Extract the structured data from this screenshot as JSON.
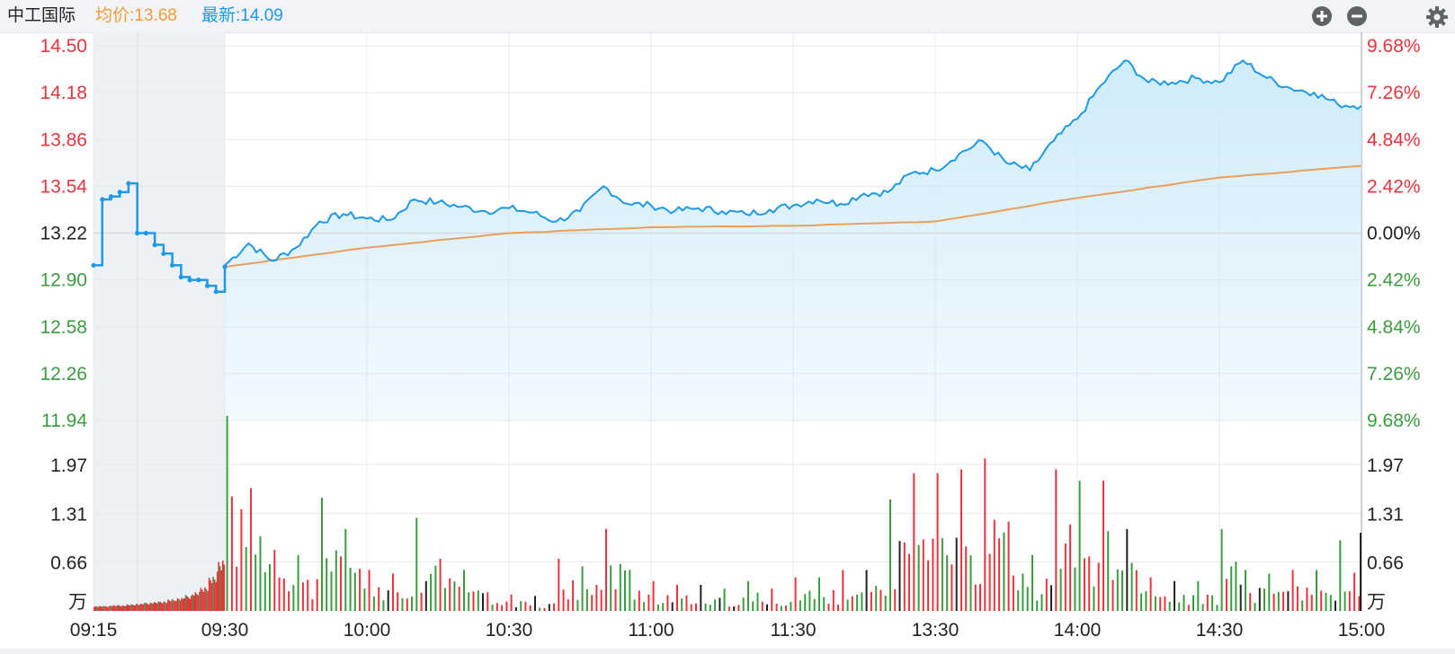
{
  "header": {
    "stock_name": "中工国际",
    "avg_label": "均价:13.68",
    "latest_label": "最新:14.09",
    "buttons": [
      {
        "name": "zoom-in-icon",
        "symbol": "plus"
      },
      {
        "name": "zoom-out-icon",
        "symbol": "minus"
      },
      {
        "name": "settings-gear-icon",
        "symbol": "gear"
      }
    ]
  },
  "colors": {
    "up": "#e8343d",
    "down": "#3b9c3f",
    "flat": "#222222",
    "price_line": "#1e9ae4",
    "avg_line": "#e8a05c",
    "preopen_bg": "#edf0f5",
    "grid": "#e7e9ed"
  },
  "chart_data": [
    {
      "type": "line",
      "title": "中工国际",
      "prev_close": 13.22,
      "ylim": [
        11.94,
        14.5
      ],
      "y_ticks_left": [
        "14.50",
        "14.18",
        "13.86",
        "13.54",
        "13.22",
        "12.90",
        "12.58",
        "12.26",
        "11.94"
      ],
      "y_ticks_right": [
        "9.68%",
        "7.26%",
        "4.84%",
        "2.42%",
        "0.00%",
        "2.42%",
        "4.84%",
        "7.26%",
        "9.68%"
      ],
      "x_ticks": [
        "09:15",
        "09:30",
        "10:00",
        "10:30",
        "11:00",
        "11:30",
        "13:30",
        "14:00",
        "14:30",
        "15:00"
      ],
      "preopen": {
        "times": [
          "09:15",
          "09:16",
          "09:17",
          "09:18",
          "09:19",
          "09:20",
          "09:21",
          "09:22",
          "09:23",
          "09:24",
          "09:25",
          "09:26",
          "09:27",
          "09:28",
          "09:29",
          "09:30"
        ],
        "price": [
          13.0,
          13.45,
          13.47,
          13.5,
          13.56,
          13.22,
          13.22,
          13.14,
          13.08,
          13.0,
          12.92,
          12.9,
          12.9,
          12.86,
          12.82,
          12.99
        ]
      },
      "series": [
        {
          "name": "最新",
          "times": [
            "09:30",
            "09:35",
            "09:40",
            "09:45",
            "09:50",
            "09:55",
            "10:00",
            "10:05",
            "10:10",
            "10:15",
            "10:20",
            "10:25",
            "10:30",
            "10:35",
            "10:40",
            "10:45",
            "10:50",
            "10:55",
            "11:00",
            "11:05",
            "11:10",
            "11:15",
            "11:20",
            "11:25",
            "11:30",
            "13:05",
            "13:10",
            "13:15",
            "13:20",
            "13:25",
            "13:30",
            "13:35",
            "13:40",
            "13:45",
            "13:50",
            "13:55",
            "14:00",
            "14:05",
            "14:10",
            "14:15",
            "14:20",
            "14:25",
            "14:30",
            "14:35",
            "14:40",
            "14:45",
            "14:50",
            "14:55",
            "15:00"
          ],
          "values": [
            13.0,
            13.15,
            13.03,
            13.12,
            13.3,
            13.35,
            13.32,
            13.31,
            13.45,
            13.43,
            13.4,
            13.37,
            13.39,
            13.36,
            13.3,
            13.37,
            13.54,
            13.42,
            13.41,
            13.37,
            13.39,
            13.37,
            13.35,
            13.38,
            13.41,
            13.45,
            13.42,
            13.49,
            13.5,
            13.63,
            13.65,
            13.76,
            13.85,
            13.7,
            13.65,
            13.85,
            14.0,
            14.23,
            14.4,
            14.25,
            14.25,
            14.28,
            14.25,
            14.4,
            14.28,
            14.21,
            14.18,
            14.1,
            14.09
          ]
        },
        {
          "name": "均价",
          "times": [
            "09:30",
            "10:00",
            "10:30",
            "11:00",
            "11:30",
            "13:30",
            "14:00",
            "14:30",
            "15:00"
          ],
          "values": [
            12.99,
            13.12,
            13.22,
            13.26,
            13.27,
            13.3,
            13.46,
            13.6,
            13.68
          ]
        }
      ]
    },
    {
      "type": "bar",
      "title": "成交量",
      "unit": "万",
      "ylim": [
        0,
        2.62
      ],
      "y_ticks": [
        "1.97",
        "1.31",
        "0.66"
      ],
      "preopen_volume": [
        0.06,
        0.06,
        0.07,
        0.07,
        0.08,
        0.09,
        0.1,
        0.11,
        0.12,
        0.14,
        0.16,
        0.19,
        0.23,
        0.3,
        0.41,
        0.62
      ],
      "session_volume_summary": {
        "times": [
          "09:30",
          "09:35",
          "09:40",
          "09:45",
          "09:50",
          "09:55",
          "10:00",
          "10:05",
          "10:10",
          "10:15",
          "10:20",
          "10:25",
          "10:30",
          "10:35",
          "10:40",
          "10:45",
          "10:50",
          "10:55",
          "11:00",
          "11:05",
          "11:10",
          "11:15",
          "11:20",
          "11:25",
          "11:30",
          "13:05",
          "13:10",
          "13:15",
          "13:20",
          "13:25",
          "13:30",
          "13:35",
          "13:40",
          "13:45",
          "13:50",
          "13:55",
          "14:00",
          "14:05",
          "14:10",
          "14:15",
          "14:20",
          "14:25",
          "14:30",
          "14:35",
          "14:40",
          "14:45",
          "14:50",
          "14:55",
          "15:00"
        ],
        "peak": [
          2.62,
          1.65,
          0.82,
          0.75,
          1.52,
          1.1,
          0.55,
          0.5,
          1.25,
          0.7,
          0.55,
          0.25,
          0.22,
          0.2,
          0.7,
          0.6,
          1.1,
          0.55,
          0.4,
          0.35,
          0.35,
          0.3,
          0.4,
          0.3,
          0.45,
          0.45,
          0.55,
          0.55,
          1.5,
          1.85,
          1.85,
          1.9,
          2.05,
          1.2,
          0.75,
          1.9,
          1.75,
          1.75,
          1.1,
          0.45,
          0.4,
          0.4,
          1.1,
          0.55,
          0.5,
          0.55,
          0.55,
          0.95,
          1.05
        ]
      }
    }
  ]
}
